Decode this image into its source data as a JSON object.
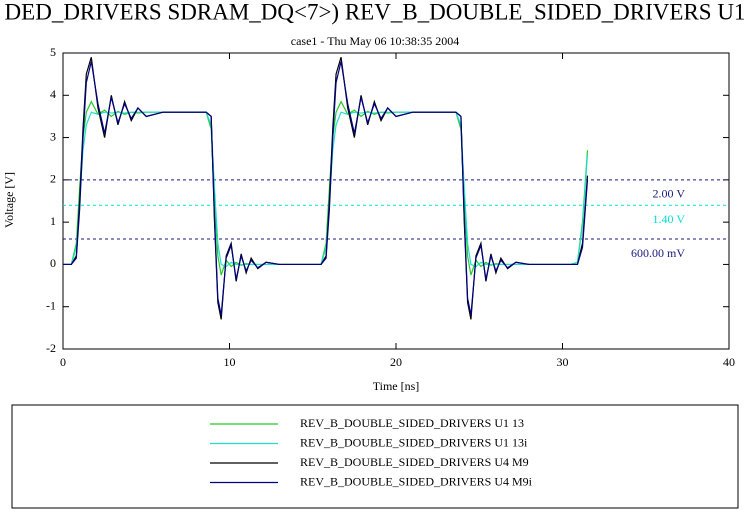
{
  "chart_data": {
    "type": "line",
    "title": "DED_DRIVERS SDRAM_DQ<7>) REV_B_DOUBLE_SIDED_DRIVERS U1",
    "subtitle": "case1 - Thu May 06 10:38:35 2004",
    "x_label": "Time [ns]",
    "y_label": "Voltage [V]",
    "xlim": [
      0,
      40
    ],
    "xticks": [
      0,
      10,
      20,
      30,
      40
    ],
    "ylim": [
      -2,
      5
    ],
    "yticks": [
      -2,
      -1,
      0,
      1,
      2,
      3,
      4,
      5
    ],
    "reference_lines": [
      {
        "value": 2,
        "label": "2.00 V",
        "color": "#1a1a80"
      },
      {
        "value": 1.4,
        "label": "1.40 V",
        "color": "#00e0d0"
      },
      {
        "value": 0.6,
        "label": "600.00 mV",
        "color": "#1a1a80"
      }
    ],
    "x": [
      0,
      0.5,
      0.8,
      1.0,
      1.2,
      1.4,
      1.7,
      2.1,
      2.5,
      2.9,
      3.3,
      3.7,
      4.1,
      4.5,
      5.0,
      6.0,
      8.6,
      8.9,
      9.1,
      9.3,
      9.5,
      9.8,
      10.1,
      10.4,
      10.7,
      11.0,
      11.3,
      11.7,
      12.2,
      13.0,
      15.0,
      15.5,
      15.8,
      16.0,
      16.2,
      16.4,
      16.7,
      17.1,
      17.5,
      17.9,
      18.3,
      18.7,
      19.1,
      19.5,
      20.0,
      21.0,
      23.6,
      23.9,
      24.1,
      24.3,
      24.5,
      24.8,
      25.1,
      25.4,
      25.7,
      26.0,
      26.3,
      26.7,
      27.2,
      28.0,
      30.5,
      30.9,
      31.2,
      31.5
    ],
    "series": [
      {
        "name": "REV_B_DOUBLE_SIDED_DRIVERS U1 13",
        "color": "#22cc22",
        "values": [
          0,
          0,
          0.5,
          1.8,
          3.0,
          3.6,
          3.85,
          3.55,
          3.65,
          3.5,
          3.62,
          3.55,
          3.6,
          3.58,
          3.6,
          3.6,
          3.6,
          3.2,
          1.5,
          0.2,
          -0.25,
          0.1,
          -0.05,
          0.05,
          -0.02,
          0.02,
          0,
          0,
          0,
          0,
          0,
          0,
          0.5,
          1.8,
          3.0,
          3.6,
          3.85,
          3.55,
          3.65,
          3.5,
          3.62,
          3.55,
          3.6,
          3.58,
          3.6,
          3.6,
          3.6,
          3.2,
          1.5,
          0.2,
          -0.25,
          0.1,
          -0.05,
          0.05,
          -0.02,
          0.02,
          0,
          0,
          0,
          0,
          0,
          0.05,
          1.0,
          2.7
        ]
      },
      {
        "name": "REV_B_DOUBLE_SIDED_DRIVERS U1 13i",
        "color": "#22ddcc",
        "values": [
          0,
          0,
          0.4,
          1.5,
          2.7,
          3.3,
          3.6,
          3.55,
          3.6,
          3.58,
          3.6,
          3.58,
          3.6,
          3.6,
          3.6,
          3.6,
          3.6,
          3.3,
          1.8,
          0.5,
          0,
          -0.05,
          0.05,
          0,
          0,
          0,
          0,
          0,
          0,
          0,
          0,
          0,
          0.4,
          1.5,
          2.7,
          3.3,
          3.6,
          3.55,
          3.6,
          3.58,
          3.6,
          3.58,
          3.6,
          3.6,
          3.6,
          3.6,
          3.6,
          3.3,
          1.8,
          0.5,
          0,
          -0.05,
          0.05,
          0,
          0,
          0,
          0,
          0,
          0,
          0,
          0,
          0.05,
          0.9,
          2.6
        ]
      },
      {
        "name": "REV_B_DOUBLE_SIDED_DRIVERS U4 M9",
        "color": "#000000",
        "values": [
          0,
          0,
          0.2,
          1.5,
          3.2,
          4.5,
          4.9,
          3.7,
          3.0,
          4.0,
          3.3,
          3.85,
          3.4,
          3.7,
          3.5,
          3.6,
          3.6,
          3.5,
          1.0,
          -0.9,
          -1.3,
          0.2,
          0.5,
          -0.4,
          0.25,
          -0.2,
          0.15,
          -0.1,
          0.05,
          0,
          0,
          0,
          0.2,
          1.5,
          3.2,
          4.5,
          4.9,
          3.7,
          3.0,
          4.0,
          3.3,
          3.85,
          3.4,
          3.7,
          3.5,
          3.6,
          3.6,
          3.5,
          1.0,
          -0.9,
          -1.3,
          0.2,
          0.5,
          -0.4,
          0.25,
          -0.2,
          0.15,
          -0.1,
          0.05,
          0,
          0,
          0,
          0.5,
          2.1
        ]
      },
      {
        "name": "REV_B_DOUBLE_SIDED_DRIVERS U4 M9i",
        "color": "#000080",
        "values": [
          0,
          0,
          0.15,
          1.3,
          3.0,
          4.3,
          4.8,
          3.8,
          3.1,
          3.95,
          3.35,
          3.8,
          3.45,
          3.7,
          3.5,
          3.6,
          3.6,
          3.5,
          1.1,
          -0.8,
          -1.2,
          0.15,
          0.45,
          -0.35,
          0.2,
          -0.15,
          0.1,
          -0.08,
          0.05,
          0,
          0,
          0,
          0.15,
          1.3,
          3.0,
          4.3,
          4.8,
          3.8,
          3.1,
          3.95,
          3.35,
          3.8,
          3.45,
          3.7,
          3.5,
          3.6,
          3.6,
          3.5,
          1.1,
          -0.8,
          -1.2,
          0.15,
          0.45,
          -0.35,
          0.2,
          -0.15,
          0.1,
          -0.08,
          0.05,
          0,
          0,
          0,
          0.4,
          2.0
        ]
      }
    ]
  }
}
